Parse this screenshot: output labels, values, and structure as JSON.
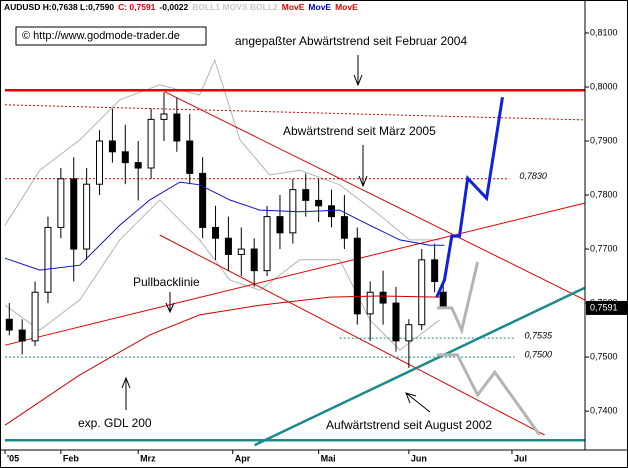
{
  "chart_data": {
    "type": "candlestick",
    "header": [
      {
        "text": "AUDUSD H:0,7638 L:0,7590",
        "color": "#000000"
      },
      {
        "text": "C: 0,7591",
        "color": "#e00000"
      },
      {
        "text": "-0,0022",
        "color": "#000000"
      },
      {
        "text": "BOLL1 MOVS BOLL2",
        "color": "#c8c8c8"
      },
      {
        "text": "MovE",
        "color": "#e00000"
      },
      {
        "text": "MovE",
        "color": "#0000cc"
      },
      {
        "text": "MovE",
        "color": "#e00000"
      }
    ],
    "copyright": "© http://www.godmode-trader.de",
    "annotations": [
      "angepaßter Abwärtstrend seit Februar 2004",
      "Abwärtstrend seit März 2005",
      "Pullbacklinie",
      "exp. GDL 200",
      "Aufwärtstrend seit August 2002"
    ],
    "xlim": [
      0,
      135
    ],
    "xticks": [
      {
        "value": 0,
        "label": "'05"
      },
      {
        "value": 13,
        "label": "Feb"
      },
      {
        "value": 31,
        "label": "Mrz"
      },
      {
        "value": 53,
        "label": "Apr"
      },
      {
        "value": 73,
        "label": "Mai"
      },
      {
        "value": 94,
        "label": "Jun"
      },
      {
        "value": 118,
        "label": "Jul"
      }
    ],
    "ylim": [
      0.7328,
      0.8161
    ],
    "yticks": [
      {
        "value": 0.74,
        "label": "0,7400"
      },
      {
        "value": 0.75,
        "label": "0,7500"
      },
      {
        "value": 0.76,
        "label": "0,7600"
      },
      {
        "value": 0.77,
        "label": "0,7700"
      },
      {
        "value": 0.78,
        "label": "0,7800"
      },
      {
        "value": 0.79,
        "label": "0,7900"
      },
      {
        "value": 0.8,
        "label": "0,8000"
      },
      {
        "value": 0.81,
        "label": "0,8100"
      }
    ],
    "candles": {
      "x": [
        1,
        4,
        7,
        10,
        13,
        16,
        19,
        22,
        25,
        28,
        31,
        34,
        37,
        40,
        43,
        46,
        49,
        52,
        55,
        58,
        61,
        64,
        67,
        70,
        73,
        76,
        79,
        82,
        85,
        88,
        91,
        94,
        97,
        100,
        102
      ],
      "open": [
        0.757,
        0.755,
        0.753,
        0.762,
        0.774,
        0.783,
        0.77,
        0.782,
        0.79,
        0.788,
        0.786,
        0.785,
        0.794,
        0.795,
        0.79,
        0.784,
        0.774,
        0.772,
        0.769,
        0.77,
        0.766,
        0.776,
        0.773,
        0.781,
        0.779,
        0.778,
        0.776,
        0.772,
        0.758,
        0.762,
        0.76,
        0.753,
        0.756,
        0.768,
        0.762
      ],
      "high": [
        0.76,
        0.757,
        0.764,
        0.776,
        0.785,
        0.787,
        0.785,
        0.792,
        0.796,
        0.793,
        0.79,
        0.796,
        0.799,
        0.798,
        0.795,
        0.787,
        0.778,
        0.776,
        0.774,
        0.772,
        0.778,
        0.78,
        0.783,
        0.784,
        0.783,
        0.781,
        0.78,
        0.774,
        0.764,
        0.766,
        0.763,
        0.757,
        0.77,
        0.771,
        0.7638
      ],
      "low": [
        0.754,
        0.7505,
        0.752,
        0.76,
        0.772,
        0.764,
        0.768,
        0.78,
        0.786,
        0.782,
        0.779,
        0.783,
        0.79,
        0.788,
        0.782,
        0.772,
        0.768,
        0.766,
        0.765,
        0.763,
        0.765,
        0.77,
        0.771,
        0.776,
        0.775,
        0.774,
        0.77,
        0.756,
        0.753,
        0.756,
        0.751,
        0.748,
        0.755,
        0.762,
        0.759
      ],
      "close": [
        0.755,
        0.753,
        0.762,
        0.774,
        0.783,
        0.77,
        0.782,
        0.79,
        0.788,
        0.786,
        0.785,
        0.794,
        0.795,
        0.79,
        0.784,
        0.774,
        0.772,
        0.769,
        0.77,
        0.766,
        0.776,
        0.773,
        0.781,
        0.779,
        0.778,
        0.776,
        0.772,
        0.758,
        0.762,
        0.76,
        0.753,
        0.756,
        0.768,
        0.764,
        0.7591
      ]
    },
    "lines": [
      {
        "color": "#b4b4b4",
        "style": "solid",
        "x": [
          0,
          8.1,
          17.4,
          26.7,
          36.0,
          45.3,
          48.8,
          54.7,
          61.6,
          68.6,
          77.9,
          87.2,
          94.2,
          101.2
        ],
        "values": [
          0.7744,
          0.7846,
          0.7902,
          0.7976,
          0.8004,
          0.7985,
          0.805,
          0.7902,
          0.7837,
          0.7846,
          0.7819,
          0.7763,
          0.7717,
          0.7717
        ]
      },
      {
        "color": "#b4b4b4",
        "style": "solid",
        "x": [
          0,
          8.1,
          17.4,
          26.7,
          36.0,
          45.3,
          52.3,
          59.3,
          68.6,
          77.9,
          84.9,
          91.9,
          101.2
        ],
        "values": [
          0.7596,
          0.755,
          0.7606,
          0.7717,
          0.7791,
          0.7717,
          0.7643,
          0.7624,
          0.768,
          0.768,
          0.7569,
          0.7513,
          0.7569
        ]
      },
      {
        "color": "#e00000",
        "style": "dotted",
        "x": [
          0,
          135
        ],
        "values": [
          0.7967,
          0.7939
        ]
      },
      {
        "color": "#e00000",
        "style": "thick",
        "x": [
          0,
          135
        ],
        "values": [
          0.7994,
          0.7994
        ]
      },
      {
        "color": "#e00000",
        "style": "solid",
        "x": [
          37.2,
          134.9
        ],
        "values": [
          0.7991,
          0.7606
        ]
      },
      {
        "color": "#e00000",
        "style": "solid",
        "x": [
          36.0,
          125.6
        ],
        "values": [
          0.7726,
          0.7356
        ]
      },
      {
        "color": "#e00000",
        "style": "solid",
        "x": [
          0,
          134.9
        ],
        "values": [
          0.7522,
          0.7785
        ]
      },
      {
        "color": "#1a8a8a",
        "style": "thick",
        "x": [
          58.1,
          134.9
        ],
        "values": [
          0.7337,
          0.7628
        ]
      },
      {
        "color": "#1a8a8a",
        "style": "thick",
        "x": [
          0,
          135
        ],
        "values": [
          0.7346,
          0.7346
        ]
      },
      {
        "color": "#1010c8",
        "style": "solid",
        "x": [
          0,
          8.1,
          17.4,
          26.7,
          33.7,
          40.7,
          45.3,
          52.3,
          59.3,
          68.6,
          77.9,
          84.9,
          91.9,
          98.8,
          102.3
        ],
        "values": [
          0.7683,
          0.7661,
          0.767,
          0.7744,
          0.7791,
          0.7824,
          0.7819,
          0.7791,
          0.7772,
          0.7769,
          0.7772,
          0.7744,
          0.7717,
          0.7707,
          0.7707
        ]
      },
      {
        "color": "#d00000",
        "style": "solid",
        "x": [
          0,
          17.4,
          33.7,
          45.3,
          59.3,
          75.6,
          87.2,
          101.2
        ],
        "values": [
          0.7374,
          0.7467,
          0.7541,
          0.7578,
          0.7596,
          0.7611,
          0.7613,
          0.7611
        ]
      },
      {
        "color": "#b4b4b4",
        "style": "projection",
        "x": [
          100.5,
          104.0,
          106.3,
          110.0
        ],
        "values": [
          0.7591,
          0.7591,
          0.755,
          0.7676
        ]
      },
      {
        "color": "#b4b4b4",
        "style": "projection",
        "x": [
          100.5,
          105.3,
          110.0,
          114.0,
          124.4
        ],
        "values": [
          0.7504,
          0.7504,
          0.743,
          0.7472,
          0.7356
        ]
      },
      {
        "color": "#1020e0",
        "style": "projection",
        "x": [
          100.5,
          102.3,
          104.0,
          105.8,
          107.7,
          112.1,
          115.8
        ],
        "values": [
          0.7611,
          0.7643,
          0.7724,
          0.7724,
          0.7831,
          0.7794,
          0.7981
        ]
      }
    ],
    "levels": [
      {
        "value": 0.783,
        "label": "0,7830",
        "color": "#e00000",
        "x": [
          0,
          117.4
        ]
      },
      {
        "value": 0.7535,
        "label": "0,7535",
        "color": "#1a8a8a",
        "x": [
          77.9,
          118.6
        ]
      },
      {
        "value": 0.75,
        "label": "0,7500",
        "color": "#1a8a8a",
        "x": [
          0,
          118.6
        ]
      }
    ],
    "last_price": {
      "value": 0.7591,
      "label": "0,7591"
    }
  }
}
